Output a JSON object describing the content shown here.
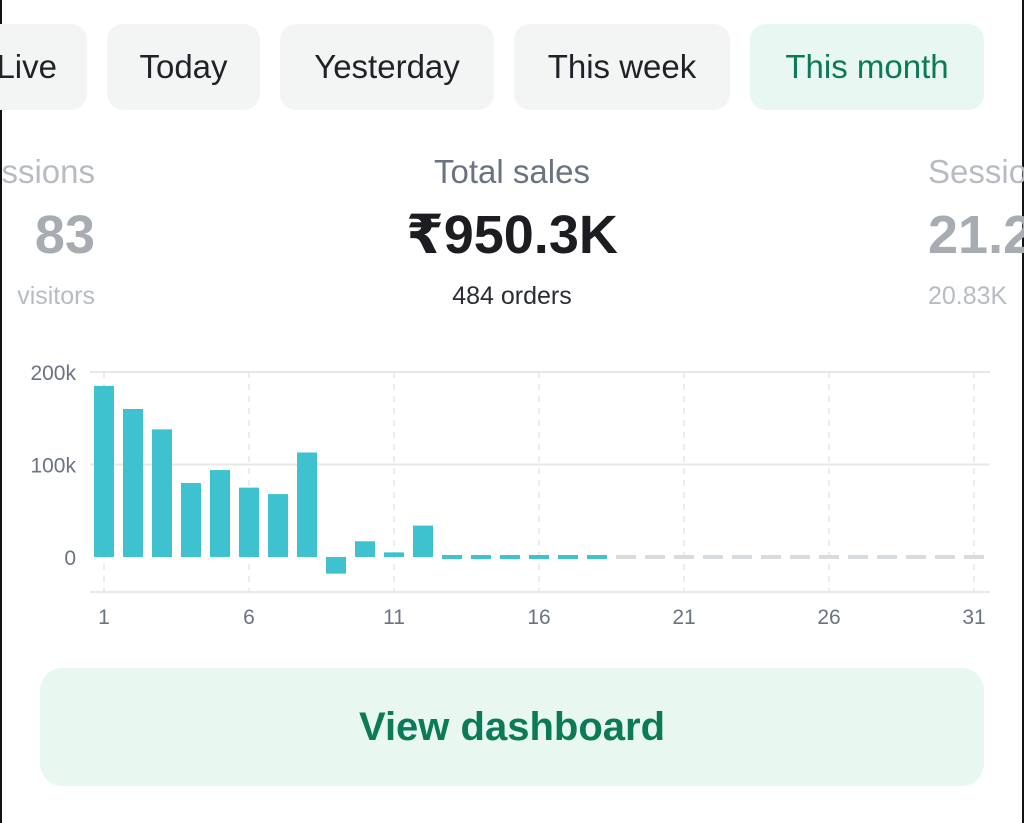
{
  "tabs": {
    "live": "Live",
    "today": "Today",
    "yesterday": "Yesterday",
    "this_week": "This week",
    "this_month": "This month",
    "selected": "This month"
  },
  "metrics": {
    "left": {
      "label": "ssions",
      "value": "83",
      "sub": "visitors"
    },
    "center": {
      "label": "Total sales",
      "value": "₹950.3K",
      "sub": "484 orders"
    },
    "right": {
      "label": "Sessio",
      "value": "21.2",
      "sub": "20.83K"
    }
  },
  "chart_data": {
    "type": "bar",
    "title": "",
    "xlabel": "",
    "ylabel": "",
    "x_ticks": [
      "1",
      "6",
      "11",
      "16",
      "21",
      "26",
      "31"
    ],
    "y_ticks": [
      "200k",
      "100k",
      "0"
    ],
    "ylim": [
      -40000,
      200000
    ],
    "categories": [
      1,
      2,
      3,
      4,
      5,
      6,
      7,
      8,
      9,
      10,
      11,
      12,
      13,
      14,
      15,
      16,
      17,
      18,
      19,
      20,
      21,
      22,
      23,
      24,
      25,
      26,
      27,
      28,
      29,
      30,
      31
    ],
    "values": [
      185000,
      160000,
      138000,
      80000,
      94000,
      75000,
      68000,
      113000,
      -18000,
      17000,
      5000,
      34000,
      3000,
      3000,
      3000,
      3000,
      3000,
      3000,
      null,
      null,
      null,
      null,
      null,
      null,
      null,
      null,
      null,
      null,
      null,
      null,
      null
    ],
    "grid": true,
    "colors": {
      "bar": "#3ec2cf",
      "future": "#d9dcdf",
      "grid": "#e6e8ea",
      "tick_text": "#6b7280"
    }
  },
  "cta": {
    "label": "View dashboard"
  }
}
